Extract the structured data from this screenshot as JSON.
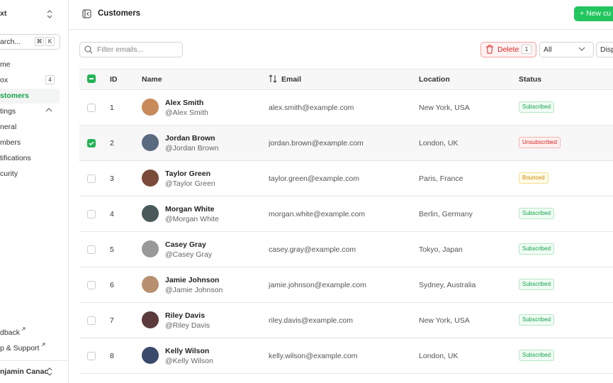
{
  "sidebar": {
    "workspace": "xt",
    "search": {
      "placeholder": "arch...",
      "keys": [
        "⌘",
        "K"
      ]
    },
    "nav": [
      {
        "label": "me"
      },
      {
        "label": "ox",
        "badge": "4"
      },
      {
        "label": "stomers",
        "active": true
      },
      {
        "label": "tings",
        "expanded": true
      }
    ],
    "settings_items": [
      "neral",
      "mbers",
      "tifications",
      "curity"
    ],
    "footer_links": [
      "dback",
      "p & Support"
    ],
    "user": "njamin Canac"
  },
  "header": {
    "title": "Customers",
    "new_button": "New cu"
  },
  "toolbar": {
    "filter_placeholder": "Filter emails...",
    "delete_button": "Delete",
    "delete_count": "1",
    "status_select": "All",
    "display_button": "Disp"
  },
  "table": {
    "columns": [
      "ID",
      "Name",
      "Email",
      "Location",
      "Status"
    ],
    "rows": [
      {
        "id": "1",
        "name": "Alex Smith",
        "handle": "@Alex Smith",
        "email": "alex.smith@example.com",
        "location": "New York, USA",
        "status": "Subscribed",
        "status_color": "green",
        "selected": false
      },
      {
        "id": "2",
        "name": "Jordan Brown",
        "handle": "@Jordan Brown",
        "email": "jordan.brown@example.com",
        "location": "London, UK",
        "status": "Unsubscribed",
        "status_color": "red",
        "selected": true
      },
      {
        "id": "3",
        "name": "Taylor Green",
        "handle": "@Taylor Green",
        "email": "taylor.green@example.com",
        "location": "Paris, France",
        "status": "Bounced",
        "status_color": "yellow",
        "selected": false
      },
      {
        "id": "4",
        "name": "Morgan White",
        "handle": "@Morgan White",
        "email": "morgan.white@example.com",
        "location": "Berlin, Germany",
        "status": "Subscribed",
        "status_color": "green",
        "selected": false
      },
      {
        "id": "5",
        "name": "Casey Gray",
        "handle": "@Casey Gray",
        "email": "casey.gray@example.com",
        "location": "Tokyo, Japan",
        "status": "Subscribed",
        "status_color": "green",
        "selected": false
      },
      {
        "id": "6",
        "name": "Jamie Johnson",
        "handle": "@Jamie Johnson",
        "email": "jamie.johnson@example.com",
        "location": "Sydney, Australia",
        "status": "Subscribed",
        "status_color": "green",
        "selected": false
      },
      {
        "id": "7",
        "name": "Riley Davis",
        "handle": "@Riley Davis",
        "email": "riley.davis@example.com",
        "location": "New York, USA",
        "status": "Subscribed",
        "status_color": "green",
        "selected": false
      },
      {
        "id": "8",
        "name": "Kelly Wilson",
        "handle": "@Kelly Wilson",
        "email": "kelly.wilson@example.com",
        "location": "London, UK",
        "status": "Subscribed",
        "status_color": "green",
        "selected": false
      }
    ]
  }
}
